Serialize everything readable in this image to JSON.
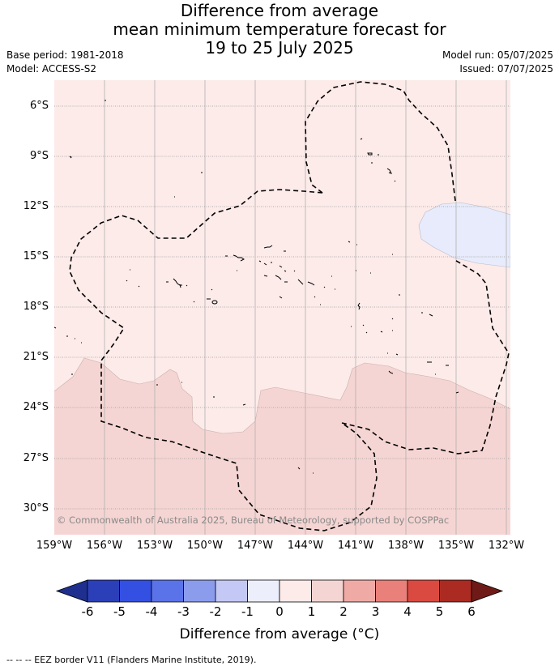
{
  "title": {
    "line1": "Difference from average",
    "line2": "mean minimum temperature forecast for",
    "line3": "19 to 25 July 2025"
  },
  "meta": {
    "base_period": "Base period: 1981-2018",
    "model": "Model: ACCESS-S2",
    "model_run": "Model run: 05/07/2025",
    "issued": "Issued: 07/07/2025"
  },
  "map": {
    "lat_labels": [
      "6°S",
      "9°S",
      "12°S",
      "15°S",
      "18°S",
      "21°S",
      "24°S",
      "27°S",
      "30°S"
    ],
    "lon_labels": [
      "159°W",
      "156°W",
      "153°W",
      "150°W",
      "147°W",
      "144°W",
      "141°W",
      "138°W",
      "135°W",
      "132°W"
    ],
    "copyright": "© Commonwealth of Australia 2025, Bureau of Meteorology, supported by COSPPac",
    "colors": {
      "bin_0_1": "#fcebe9",
      "bin_1_2": "#f5d5d3",
      "bin_m1_0": "#e7ebfb"
    }
  },
  "colorbar": {
    "ticks": [
      "-6",
      "-5",
      "-4",
      "-3",
      "-2",
      "-1",
      "0",
      "1",
      "2",
      "3",
      "4",
      "5",
      "6"
    ],
    "colors": [
      "#1e2f8f",
      "#2b40b8",
      "#3350e2",
      "#5a73e8",
      "#8b9ced",
      "#c3c8f5",
      "#eceefc",
      "#fcebe9",
      "#f5d5d3",
      "#efaaa6",
      "#e98079",
      "#db4a40",
      "#ab2b22",
      "#6f1a16"
    ],
    "label": "Difference from average (°C)"
  },
  "footer": "-- -- -- EEZ border V11 (Flanders Marine Institute, 2019)."
}
